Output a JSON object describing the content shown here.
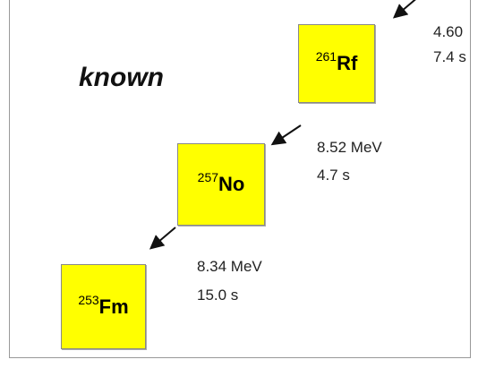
{
  "label": "known",
  "nodes": [
    {
      "mass": "261",
      "symbol": "Rf"
    },
    {
      "mass": "257",
      "symbol": "No"
    },
    {
      "mass": "253",
      "symbol": "Fm"
    }
  ],
  "decays": [
    {
      "energy": "4.60",
      "halflife": "7.4 s"
    },
    {
      "energy": "8.52 MeV",
      "halflife": "4.7 s"
    },
    {
      "energy": "8.34 MeV",
      "halflife": "15.0 s"
    }
  ]
}
